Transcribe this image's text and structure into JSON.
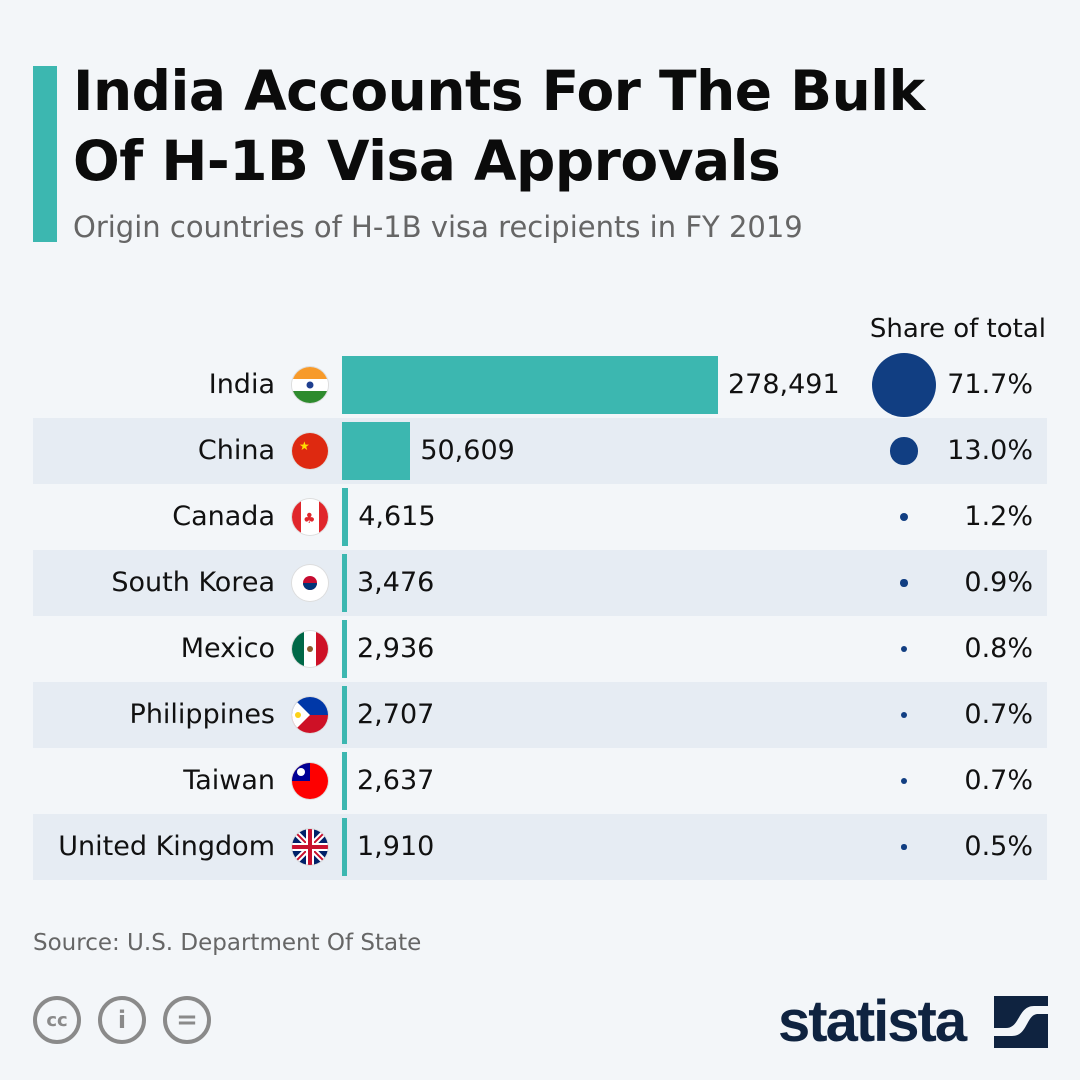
{
  "header": {
    "title_line1": "India Accounts For The Bulk",
    "title_line2": "Of H-1B Visa Approvals",
    "subtitle": "Origin countries of H-1B visa recipients in FY 2019"
  },
  "chart_data": {
    "type": "bar",
    "title": "India Accounts For The Bulk Of H-1B Visa Approvals",
    "subtitle": "Origin countries of H-1B visa recipients in FY 2019",
    "categories": [
      "India",
      "China",
      "Canada",
      "South Korea",
      "Mexico",
      "Philippines",
      "Taiwan",
      "United Kingdom"
    ],
    "values": [
      278491,
      50609,
      4615,
      3476,
      2936,
      2707,
      2637,
      1910
    ],
    "value_labels": [
      "278,491",
      "50,609",
      "4,615",
      "3,476",
      "2,936",
      "2,707",
      "2,637",
      "1,910"
    ],
    "share_header": "Share of total",
    "share": [
      71.7,
      13.0,
      1.2,
      0.9,
      0.8,
      0.7,
      0.7,
      0.5
    ],
    "share_labels": [
      "71.7%",
      "13.0%",
      "1.2%",
      "0.9%",
      "0.8%",
      "0.7%",
      "0.7%",
      "0.5%"
    ],
    "flags": [
      "india",
      "china",
      "canada",
      "south-korea",
      "mexico",
      "philippines",
      "taiwan",
      "united-kingdom"
    ],
    "bar_color": "#3cb7b0",
    "bubble_color": "#113e82"
  },
  "footer": {
    "source": "Source: U.S. Department Of State",
    "brand": "statista",
    "cc_icons": [
      "cc",
      "by",
      "nd"
    ],
    "cc_glyphs": [
      "cc",
      "i",
      "="
    ]
  }
}
